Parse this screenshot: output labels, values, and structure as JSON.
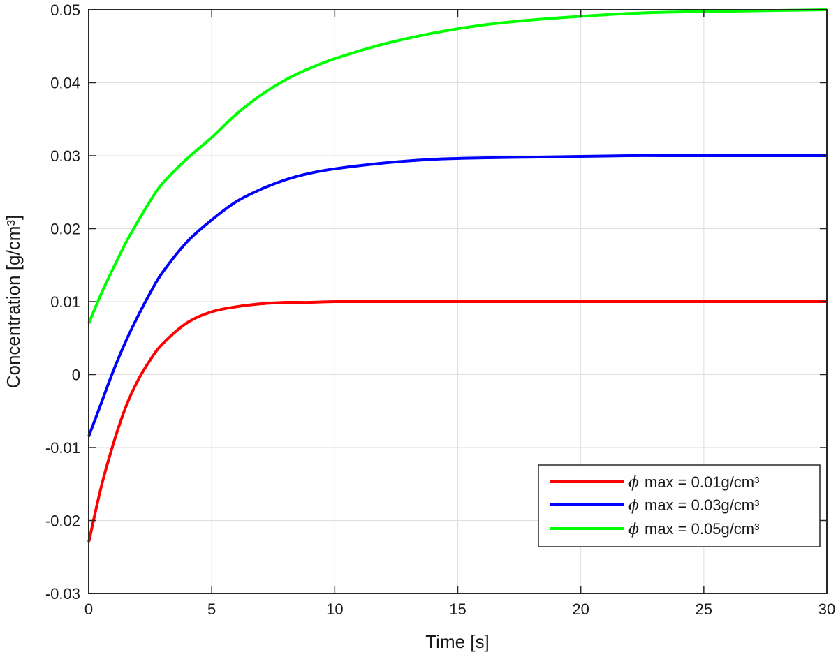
{
  "chart_data": {
    "type": "line",
    "xlabel": "Time [s]",
    "ylabel": "Concentration [g/cm³]",
    "xlim": [
      0,
      30
    ],
    "ylim": [
      -0.03,
      0.05
    ],
    "x_ticks": [
      0,
      5,
      10,
      15,
      20,
      25,
      30
    ],
    "x_tick_labels": [
      "0",
      "5",
      "10",
      "15",
      "20",
      "25",
      "30"
    ],
    "y_ticks": [
      -0.03,
      -0.02,
      -0.01,
      0,
      0.01,
      0.02,
      0.03,
      0.04,
      0.05
    ],
    "y_tick_labels": [
      "-0.03",
      "-0.02",
      "-0.01",
      "0",
      "0.01",
      "0.02",
      "0.03",
      "0.04",
      "0.05"
    ],
    "grid": true,
    "legend_position": "bottom-right",
    "x": [
      0,
      0.5,
      1,
      1.5,
      2,
      2.5,
      3,
      4,
      5,
      6,
      7,
      8,
      9,
      10,
      12,
      14,
      16,
      18,
      20,
      22,
      24,
      26,
      28,
      30
    ],
    "series": [
      {
        "name": "max = 0.01g/cm³",
        "symbol": "ϕ",
        "color": "#ff0000",
        "values": [
          -0.023,
          -0.0155,
          -0.0095,
          -0.0045,
          -0.0008,
          0.002,
          0.0042,
          0.0071,
          0.0086,
          0.0093,
          0.0097,
          0.0099,
          0.0099,
          0.01,
          0.01,
          0.01,
          0.01,
          0.01,
          0.01,
          0.01,
          0.01,
          0.01,
          0.01,
          0.01
        ]
      },
      {
        "name": "max = 0.03g/cm³",
        "symbol": "ϕ",
        "color": "#0000ff",
        "values": [
          -0.0085,
          -0.004,
          0.0005,
          0.0045,
          0.008,
          0.0112,
          0.014,
          0.0182,
          0.0212,
          0.0237,
          0.0254,
          0.0267,
          0.0276,
          0.0282,
          0.029,
          0.0295,
          0.0297,
          0.0298,
          0.0299,
          0.03,
          0.03,
          0.03,
          0.03,
          0.03
        ]
      },
      {
        "name": "max = 0.05g/cm³",
        "symbol": "ϕ",
        "color": "#00ff00",
        "values": [
          0.007,
          0.011,
          0.0146,
          0.018,
          0.021,
          0.0238,
          0.0262,
          0.0296,
          0.0325,
          0.0357,
          0.0383,
          0.0404,
          0.042,
          0.0433,
          0.0453,
          0.0468,
          0.0479,
          0.0486,
          0.0491,
          0.0495,
          0.0497,
          0.0498,
          0.0499,
          0.05
        ]
      }
    ]
  }
}
